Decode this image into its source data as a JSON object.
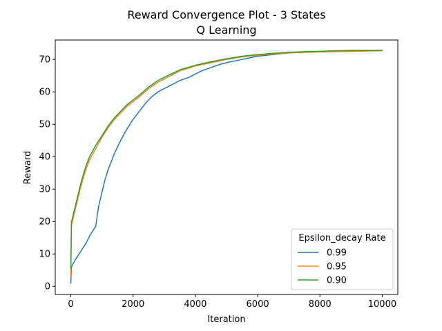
{
  "chart_data": {
    "type": "line",
    "title": "Reward Convergence Plot - 3 States",
    "subtitle": "Q Learning",
    "xlabel": "Iteration",
    "ylabel": "Reward",
    "xlim": [
      -500,
      10500
    ],
    "ylim": [
      -2.5,
      76
    ],
    "xticks": [
      0,
      2000,
      4000,
      6000,
      8000,
      10000
    ],
    "yticks": [
      0,
      10,
      20,
      30,
      40,
      50,
      60,
      70
    ],
    "grid": false,
    "legend": {
      "title": "Epsilon_decay Rate",
      "placement": "lower-right"
    },
    "series": [
      {
        "name": "0.99",
        "color": "#1f77b4",
        "x": [
          0,
          20,
          50,
          100,
          200,
          300,
          400,
          500,
          600,
          700,
          800,
          850,
          900,
          1000,
          1100,
          1200,
          1400,
          1600,
          1800,
          2000,
          2200,
          2400,
          2600,
          2800,
          3000,
          3200,
          3500,
          3800,
          4000,
          4200,
          4500,
          4800,
          5000,
          5500,
          6000,
          6500,
          7000,
          7500,
          8000,
          8500,
          9000,
          9500,
          10000
        ],
        "values": [
          1,
          6,
          6.5,
          7.5,
          9,
          10.5,
          12,
          13.5,
          15.5,
          17,
          18.5,
          22,
          25,
          29,
          33,
          36,
          41,
          45,
          48.5,
          51.5,
          54,
          56.5,
          58.5,
          60,
          61,
          62,
          63.5,
          64.5,
          65.5,
          66.5,
          67.5,
          68.5,
          69,
          70,
          71,
          71.5,
          72,
          72.3,
          72.5,
          72.6,
          72.7,
          72.7,
          72.8
        ]
      },
      {
        "name": "0.95",
        "color": "#ff7f0e",
        "x": [
          0,
          20,
          50,
          100,
          200,
          300,
          400,
          500,
          600,
          800,
          1000,
          1200,
          1400,
          1600,
          1800,
          2000,
          2200,
          2500,
          2800,
          3000,
          3500,
          4000,
          4500,
          5000,
          5500,
          6000,
          6500,
          7000,
          7500,
          8000,
          8500,
          9000,
          9500,
          10000
        ],
        "values": [
          3,
          19,
          20,
          22,
          26,
          30,
          33.5,
          36.5,
          39,
          42.5,
          46,
          49,
          51.5,
          53.5,
          55.5,
          57,
          58.5,
          61,
          63,
          64,
          66.5,
          68,
          69,
          70,
          70.8,
          71.3,
          71.7,
          72,
          72.2,
          72.3,
          72.4,
          72.5,
          72.6,
          72.7
        ]
      },
      {
        "name": "0.90",
        "color": "#2ca02c",
        "x": [
          0,
          20,
          50,
          100,
          200,
          300,
          400,
          500,
          600,
          800,
          1000,
          1200,
          1400,
          1600,
          1800,
          2000,
          2200,
          2500,
          2800,
          3000,
          3500,
          4000,
          4500,
          5000,
          5500,
          6000,
          6500,
          7000,
          7500,
          8000,
          8500,
          9000,
          9500,
          10000
        ],
        "values": [
          5.5,
          20,
          21,
          23,
          27,
          31,
          34.5,
          37.5,
          40,
          43.5,
          46.5,
          49.5,
          52,
          54,
          56,
          57.5,
          59,
          61.5,
          63.5,
          64.5,
          66.8,
          68.2,
          69.3,
          70.2,
          71,
          71.5,
          71.9,
          72.2,
          72.4,
          72.5,
          72.7,
          72.8,
          72.8,
          72.8
        ]
      }
    ]
  }
}
